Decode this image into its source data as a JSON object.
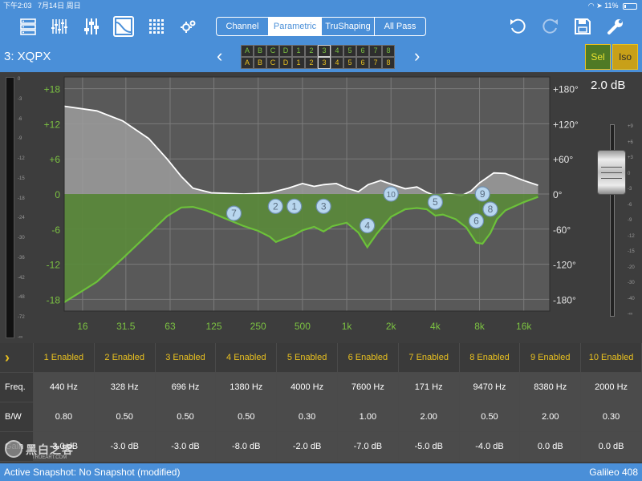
{
  "status": {
    "time": "下午2:03",
    "date": "7月14日 周日",
    "battery": "11%"
  },
  "toolbar": {
    "icons": [
      "routing-icon",
      "eq-sliders-icon",
      "faders-icon",
      "parametric-graph-icon",
      "matrix-grid-icon",
      "settings-gears-icon"
    ],
    "segments": [
      "Channel",
      "Parametric",
      "TruShaping",
      "All Pass"
    ],
    "active_segment": "Parametric",
    "right_icons": [
      "undo-icon",
      "redo-icon",
      "save-icon",
      "wrench-icon"
    ]
  },
  "title": {
    "channel_name": "3: XQPX",
    "prev": "‹",
    "next": "›",
    "selector_row1": [
      "A",
      "B",
      "C",
      "D",
      "1",
      "2",
      "3",
      "4",
      "5",
      "6",
      "7",
      "8"
    ],
    "selector_row2": [
      "A",
      "B",
      "C",
      "D",
      "1",
      "2",
      "3",
      "4",
      "5",
      "6",
      "7",
      "8"
    ],
    "sel_label": "Sel",
    "iso_label": "Iso"
  },
  "meter": {
    "scale": [
      "0",
      "-3",
      "-6",
      "-9",
      "-12",
      "-15",
      "-18",
      "-24",
      "-30",
      "-36",
      "-42",
      "-48",
      "-72",
      "-∞"
    ]
  },
  "graph": {
    "gain_labels": [
      "+18",
      "+12",
      "+6",
      "0",
      "-6",
      "-12",
      "-18"
    ],
    "phase_labels": [
      "+180°",
      "+120°",
      "+60°",
      "0°",
      "-60°",
      "-120°",
      "-180°"
    ],
    "freq_labels": [
      "16",
      "31.5",
      "63",
      "125",
      "250",
      "500",
      "1k",
      "2k",
      "4k",
      "8k",
      "16k"
    ],
    "colors": {
      "bg": "#595959",
      "grid": "#7b7b7b",
      "green_line": "#6cc13a",
      "green_fill": "#5a8a3a",
      "white_line": "#ffffff",
      "gray_fill": "#9c9c9c",
      "marker": "#b8d6ee",
      "label_green": "#7cc242",
      "label_white": "#e6e6e6"
    },
    "markers": [
      {
        "label": "1",
        "freq": 440
      },
      {
        "label": "2",
        "freq": 328
      },
      {
        "label": "3",
        "freq": 696
      },
      {
        "label": "4",
        "freq": 1380
      },
      {
        "label": "5",
        "freq": 4000
      },
      {
        "label": "6",
        "freq": 7600
      },
      {
        "label": "7",
        "freq": 171
      },
      {
        "label": "8",
        "freq": 9470
      },
      {
        "label": "9",
        "freq": 8380
      },
      {
        "label": "10",
        "freq": 2000
      }
    ]
  },
  "fader": {
    "gain_readout": "2.0 dB",
    "gain_db": 2.0,
    "scale": [
      "+9",
      "+6",
      "+3",
      "0",
      "-3",
      "-6",
      "-9",
      "-12",
      "-15",
      "-20",
      "-30",
      "-40",
      "-∞"
    ]
  },
  "bands": {
    "expand_icon": "chevron-right-icon",
    "row_labels": [
      "Freq.",
      "B/W",
      "Gain"
    ],
    "headers": [
      "1 Enabled",
      "2 Enabled",
      "3 Enabled",
      "4 Enabled",
      "5 Enabled",
      "6 Enabled",
      "7 Enabled",
      "8 Enabled",
      "9 Enabled",
      "10 Enabled"
    ],
    "freq": [
      "440 Hz",
      "328 Hz",
      "696 Hz",
      "1380 Hz",
      "4000 Hz",
      "7600 Hz",
      "171 Hz",
      "9470 Hz",
      "8380 Hz",
      "2000 Hz"
    ],
    "bw": [
      "0.80",
      "0.50",
      "0.50",
      "0.50",
      "0.30",
      "1.00",
      "2.00",
      "0.50",
      "2.00",
      "0.30"
    ],
    "gain": [
      "-3.0 dB",
      "-3.0 dB",
      "-3.0 dB",
      "-8.0 dB",
      "-2.0 dB",
      "-7.0 dB",
      "-5.0 dB",
      "-4.0 dB",
      "0.0 dB",
      "0.0 dB"
    ]
  },
  "bottom": {
    "snapshot": "Active Snapshot: No Snapshot (modified)",
    "device": "Galileo 408"
  },
  "watermark": {
    "title": "黑白之客",
    "sub": "TRUEART.COM"
  }
}
